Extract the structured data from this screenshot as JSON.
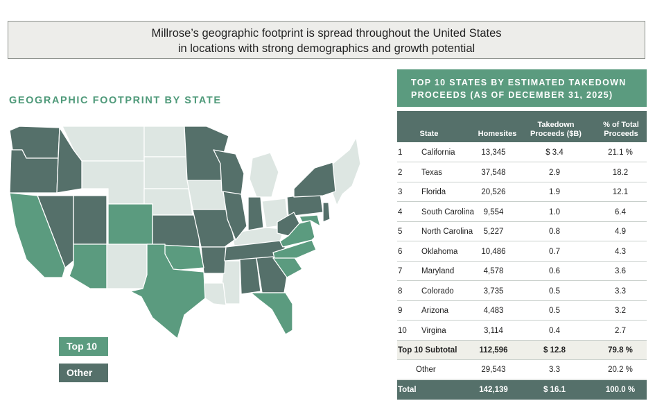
{
  "headline": {
    "line1": "Millrose’s geographic footprint is spread throughout the United States",
    "line2": "in locations with strong demographics and growth potential"
  },
  "map": {
    "title": "GEOGRAPHIC FOOTPRINT BY STATE",
    "legend": {
      "top10": "Top 10",
      "other": "Other"
    },
    "colors": {
      "top10": "#5b9b7f",
      "other": "#55706a",
      "none": "#dde6e2"
    }
  },
  "table": {
    "title_line1": "TOP 10 STATES BY ESTIMATED TAKEDOWN",
    "title_line2": "PROCEEDS (AS OF DECEMBER 31, 2025)",
    "headers": {
      "state": "State",
      "homesites": "Homesites",
      "proceeds_l1": "Takedown",
      "proceeds_l2": "Proceeds ($B)",
      "pct_l1": "% of Total",
      "pct_l2": "Proceeds"
    },
    "rows": [
      {
        "rank": "1",
        "state": "California",
        "homesites": "13,345",
        "proceeds": "$ 3.4",
        "pct": "21.1 %"
      },
      {
        "rank": "2",
        "state": "Texas",
        "homesites": "37,548",
        "proceeds": "2.9",
        "pct": "18.2"
      },
      {
        "rank": "3",
        "state": "Florida",
        "homesites": "20,526",
        "proceeds": "1.9",
        "pct": "12.1"
      },
      {
        "rank": "4",
        "state": "South Carolina",
        "homesites": "9,554",
        "proceeds": "1.0",
        "pct": "6.4"
      },
      {
        "rank": "5",
        "state": "North Carolina",
        "homesites": "5,227",
        "proceeds": "0.8",
        "pct": "4.9"
      },
      {
        "rank": "6",
        "state": "Oklahoma",
        "homesites": "10,486",
        "proceeds": "0.7",
        "pct": "4.3"
      },
      {
        "rank": "7",
        "state": "Maryland",
        "homesites": "4,578",
        "proceeds": "0.6",
        "pct": "3.6"
      },
      {
        "rank": "8",
        "state": "Colorado",
        "homesites": "3,735",
        "proceeds": "0.5",
        "pct": "3.3"
      },
      {
        "rank": "9",
        "state": "Arizona",
        "homesites": "4,483",
        "proceeds": "0.5",
        "pct": "3.2"
      },
      {
        "rank": "10",
        "state": "Virgina",
        "homesites": "3,114",
        "proceeds": "0.4",
        "pct": "2.7"
      }
    ],
    "subtotal": {
      "label": "Top 10 Subtotal",
      "homesites": "112,596",
      "proceeds": "$ 12.8",
      "pct": "79.8 %"
    },
    "other": {
      "label": "Other",
      "homesites": "29,543",
      "proceeds": "3.3",
      "pct": "20.2 %"
    },
    "total": {
      "label": "Total",
      "homesites": "142,139",
      "proceeds": "$ 16.1",
      "pct": "100.0 %"
    }
  }
}
